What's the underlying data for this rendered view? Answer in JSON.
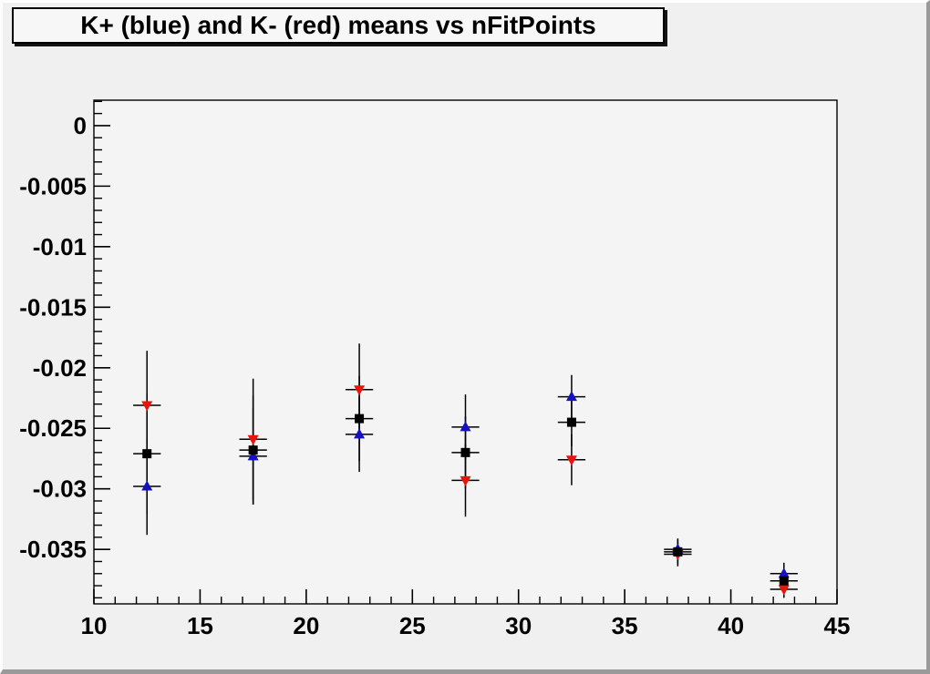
{
  "title": "K+ (blue) and K- (red) means vs nFitPoints",
  "colors": {
    "kplus_blue": "#1511c0",
    "kminus_red": "#e8130b",
    "mean_black": "#000000",
    "canvas_bg": "#f0f0f0",
    "frame_bg": "#f4f4f4"
  },
  "chart_data": {
    "type": "scatter",
    "title": "K+ (blue) and K- (red) means vs nFitPoints",
    "xlabel": "",
    "ylabel": "",
    "xlim": [
      10,
      45
    ],
    "ylim": [
      -0.0395,
      0.0021
    ],
    "grid": false,
    "legend_position": "none",
    "x_ticks": {
      "major": [
        10,
        15,
        20,
        25,
        30,
        35,
        40,
        45
      ],
      "labels": [
        "10",
        "15",
        "20",
        "25",
        "30",
        "35",
        "40",
        "45"
      ],
      "minor_step": 1
    },
    "y_ticks": {
      "major": [
        0,
        -0.005,
        -0.01,
        -0.015,
        -0.02,
        -0.025,
        -0.03,
        -0.035
      ],
      "labels": [
        "0",
        "-0.005",
        "-0.01",
        "-0.015",
        "-0.02",
        "-0.025",
        "-0.03",
        "-0.035"
      ],
      "minor_step": 0.001
    },
    "x": [
      12.5,
      17.5,
      22.5,
      27.5,
      32.5,
      37.5,
      42.5
    ],
    "xerr": 0.65,
    "series": [
      {
        "name": "K+ mean (blue)",
        "marker": "triangle-up",
        "color": "#1511c0",
        "values": [
          -0.0298,
          -0.0273,
          -0.0255,
          -0.0249,
          -0.0224,
          -0.035,
          -0.037
        ],
        "yerr": [
          0.004,
          0.004,
          0.0031,
          0.0027,
          0.0018,
          0.0009,
          0.0009
        ]
      },
      {
        "name": "K- mean (red)",
        "marker": "triangle-down",
        "color": "#e8130b",
        "values": [
          -0.0231,
          -0.0259,
          -0.0218,
          -0.0293,
          -0.0276,
          -0.0354,
          -0.0383
        ],
        "yerr": [
          0.0045,
          0.005,
          0.0038,
          0.003,
          0.0021,
          0.001,
          0.0007
        ]
      },
      {
        "name": "combined mean (black)",
        "marker": "square",
        "color": "#000000",
        "values": [
          -0.0271,
          -0.0268,
          -0.0242,
          -0.027,
          -0.0245,
          -0.0352,
          -0.0376
        ],
        "yerr": [
          0.005,
          0.0045,
          0.0035,
          0.003,
          0.002,
          0.001,
          0.0008
        ]
      }
    ]
  }
}
